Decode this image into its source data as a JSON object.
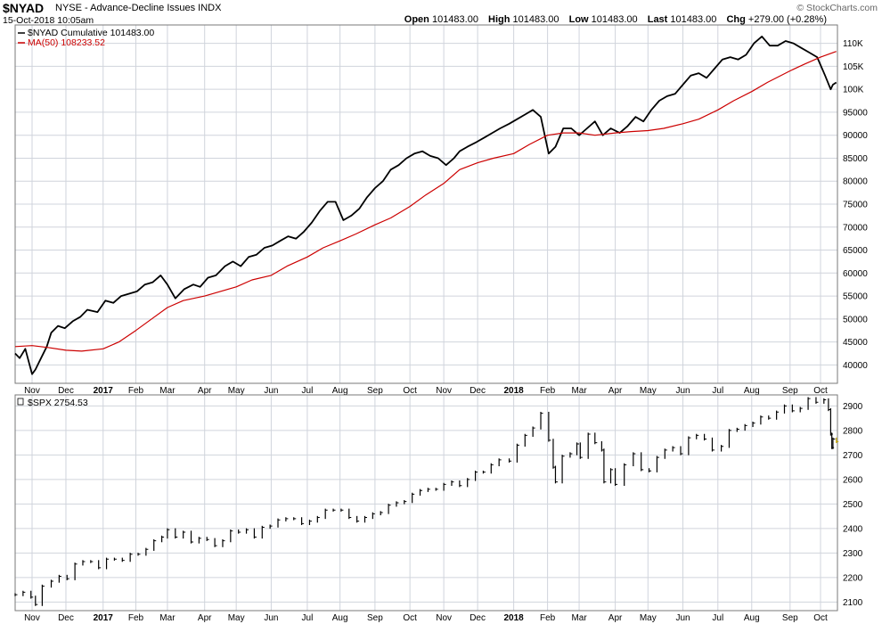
{
  "header": {
    "symbol": "$NYAD",
    "description": "NYSE - Advance-Decline Issues INDX",
    "date": "15-Oct-2018 10:05am",
    "brand": "© StockCharts.com",
    "quote": {
      "open_label": "Open",
      "open": "101483.00",
      "high_label": "High",
      "high": "101483.00",
      "low_label": "Low",
      "low": "101483.00",
      "last_label": "Last",
      "last": "101483.00",
      "chg_label": "Chg",
      "chg": "+279.00 (+0.28%)"
    }
  },
  "colors": {
    "price": "#000000",
    "ma": "#cc0000",
    "grid": "#d0d4dc",
    "frame": "#7a7a7a"
  },
  "chart_data": [
    {
      "type": "line",
      "legend_position": "top-left",
      "grid": true,
      "ylim": [
        36000,
        114000
      ],
      "y_ticks": [
        40000,
        45000,
        50000,
        55000,
        60000,
        65000,
        70000,
        75000,
        80000,
        85000,
        90000,
        95000,
        100000,
        105000,
        110000
      ],
      "y_tick_labels": [
        "40000",
        "45000",
        "50000",
        "55000",
        "60000",
        "65000",
        "70000",
        "75000",
        "80000",
        "85000",
        "90000",
        "95000",
        "100K",
        "105K",
        "110K"
      ],
      "x_start": "2016-10-17",
      "x_end": "2018-10-16",
      "x_tick_labels": [
        {
          "date": "2016-11-01",
          "label": "Nov"
        },
        {
          "date": "2016-12-01",
          "label": "Dec"
        },
        {
          "date": "2017-01-03",
          "label": "2017"
        },
        {
          "date": "2017-02-01",
          "label": "Feb"
        },
        {
          "date": "2017-03-01",
          "label": "Mar"
        },
        {
          "date": "2017-04-03",
          "label": "Apr"
        },
        {
          "date": "2017-05-01",
          "label": "May"
        },
        {
          "date": "2017-06-01",
          "label": "Jun"
        },
        {
          "date": "2017-07-03",
          "label": "Jul"
        },
        {
          "date": "2017-08-01",
          "label": "Aug"
        },
        {
          "date": "2017-09-01",
          "label": "Sep"
        },
        {
          "date": "2017-10-02",
          "label": "Oct"
        },
        {
          "date": "2017-11-01",
          "label": "Nov"
        },
        {
          "date": "2017-12-01",
          "label": "Dec"
        },
        {
          "date": "2018-01-02",
          "label": "2018"
        },
        {
          "date": "2018-02-01",
          "label": "Feb"
        },
        {
          "date": "2018-03-01",
          "label": "Mar"
        },
        {
          "date": "2018-04-02",
          "label": "Apr"
        },
        {
          "date": "2018-05-01",
          "label": "May"
        },
        {
          "date": "2018-06-01",
          "label": "Jun"
        },
        {
          "date": "2018-07-02",
          "label": "Jul"
        },
        {
          "date": "2018-08-01",
          "label": "Aug"
        },
        {
          "date": "2018-09-04",
          "label": "Sep"
        },
        {
          "date": "2018-10-01",
          "label": "Oct"
        }
      ],
      "series": [
        {
          "name": "$NYAD Cumulative 101483.00",
          "color": "#000000",
          "x": [
            "2016-10-17",
            "2016-10-21",
            "2016-10-26",
            "2016-11-01",
            "2016-11-04",
            "2016-11-09",
            "2016-11-14",
            "2016-11-18",
            "2016-11-24",
            "2016-11-30",
            "2016-12-07",
            "2016-12-14",
            "2016-12-20",
            "2016-12-29",
            "2017-01-05",
            "2017-01-12",
            "2017-01-19",
            "2017-01-26",
            "2017-02-02",
            "2017-02-09",
            "2017-02-16",
            "2017-02-23",
            "2017-03-01",
            "2017-03-08",
            "2017-03-16",
            "2017-03-24",
            "2017-03-30",
            "2017-04-06",
            "2017-04-13",
            "2017-04-21",
            "2017-04-28",
            "2017-05-05",
            "2017-05-12",
            "2017-05-19",
            "2017-05-26",
            "2017-06-02",
            "2017-06-09",
            "2017-06-16",
            "2017-06-23",
            "2017-06-30",
            "2017-07-07",
            "2017-07-14",
            "2017-07-21",
            "2017-07-28",
            "2017-08-04",
            "2017-08-11",
            "2017-08-18",
            "2017-08-25",
            "2017-09-01",
            "2017-09-08",
            "2017-09-15",
            "2017-09-22",
            "2017-09-29",
            "2017-10-06",
            "2017-10-13",
            "2017-10-20",
            "2017-10-27",
            "2017-11-03",
            "2017-11-10",
            "2017-11-15",
            "2017-11-22",
            "2017-11-30",
            "2017-12-07",
            "2017-12-14",
            "2017-12-21",
            "2017-12-29",
            "2018-01-05",
            "2018-01-12",
            "2018-01-19",
            "2018-01-26",
            "2018-02-02",
            "2018-02-08",
            "2018-02-15",
            "2018-02-22",
            "2018-03-01",
            "2018-03-08",
            "2018-03-15",
            "2018-03-22",
            "2018-03-29",
            "2018-04-06",
            "2018-04-13",
            "2018-04-20",
            "2018-04-27",
            "2018-05-04",
            "2018-05-11",
            "2018-05-18",
            "2018-05-25",
            "2018-06-01",
            "2018-06-08",
            "2018-06-15",
            "2018-06-22",
            "2018-06-29",
            "2018-07-06",
            "2018-07-13",
            "2018-07-20",
            "2018-07-27",
            "2018-08-03",
            "2018-08-10",
            "2018-08-17",
            "2018-08-24",
            "2018-08-31",
            "2018-09-07",
            "2018-09-14",
            "2018-09-21",
            "2018-09-28",
            "2018-10-05",
            "2018-10-10",
            "2018-10-12",
            "2018-10-15"
          ],
          "values": [
            42500,
            41500,
            43500,
            38000,
            39000,
            41500,
            44000,
            47000,
            48500,
            48000,
            49500,
            50500,
            52000,
            51500,
            54000,
            53500,
            55000,
            55500,
            56000,
            57500,
            58000,
            59500,
            57500,
            54500,
            56500,
            57500,
            57000,
            59000,
            59500,
            61500,
            62500,
            61500,
            63500,
            64000,
            65500,
            66000,
            67000,
            68000,
            67500,
            69000,
            71000,
            73500,
            75500,
            75500,
            71500,
            72500,
            74000,
            76500,
            78500,
            80000,
            82500,
            83500,
            85000,
            86000,
            86500,
            85500,
            85000,
            83500,
            85000,
            86500,
            87500,
            88500,
            89500,
            90500,
            91500,
            92500,
            93500,
            94500,
            95500,
            94000,
            86000,
            87500,
            91500,
            91500,
            90000,
            91500,
            93000,
            90000,
            91500,
            90500,
            92000,
            94000,
            93000,
            95500,
            97500,
            98500,
            99000,
            101000,
            103000,
            103500,
            102500,
            104500,
            106500,
            107000,
            106500,
            107500,
            110000,
            111500,
            109500,
            109500,
            110500,
            110000,
            109000,
            108000,
            107000,
            103000,
            100000,
            101000,
            101483
          ]
        },
        {
          "name": "MA(50) 108233.52",
          "color": "#cc0000",
          "x": [
            "2016-10-17",
            "2016-11-01",
            "2016-11-15",
            "2016-12-01",
            "2016-12-15",
            "2017-01-03",
            "2017-01-17",
            "2017-02-01",
            "2017-02-15",
            "2017-03-01",
            "2017-03-15",
            "2017-04-03",
            "2017-04-17",
            "2017-05-01",
            "2017-05-15",
            "2017-06-01",
            "2017-06-15",
            "2017-07-03",
            "2017-07-17",
            "2017-08-01",
            "2017-08-15",
            "2017-09-01",
            "2017-09-15",
            "2017-10-02",
            "2017-10-16",
            "2017-11-01",
            "2017-11-15",
            "2017-12-01",
            "2017-12-15",
            "2018-01-02",
            "2018-01-16",
            "2018-02-01",
            "2018-02-15",
            "2018-03-01",
            "2018-03-15",
            "2018-04-02",
            "2018-04-16",
            "2018-05-01",
            "2018-05-15",
            "2018-06-01",
            "2018-06-15",
            "2018-07-02",
            "2018-07-16",
            "2018-08-01",
            "2018-08-15",
            "2018-09-04",
            "2018-09-17",
            "2018-10-01",
            "2018-10-15"
          ],
          "values": [
            44000,
            44200,
            43800,
            43200,
            43000,
            43500,
            45000,
            47500,
            50000,
            52500,
            54000,
            55000,
            56000,
            57000,
            58500,
            59500,
            61500,
            63500,
            65500,
            67000,
            68500,
            70500,
            72000,
            74500,
            77000,
            79500,
            82500,
            84000,
            85000,
            86000,
            88000,
            90000,
            90500,
            90500,
            90000,
            90500,
            90800,
            91000,
            91500,
            92500,
            93500,
            95500,
            97500,
            99500,
            101500,
            104000,
            105500,
            107000,
            108233.52
          ]
        }
      ]
    },
    {
      "type": "bar",
      "name": "$SPX 2754.53",
      "legend_position": "top-left",
      "grid": true,
      "ylim": [
        2065,
        2945
      ],
      "y_ticks": [
        2100,
        2200,
        2300,
        2400,
        2500,
        2600,
        2700,
        2800,
        2900
      ],
      "y_tick_labels": [
        "2100",
        "2200",
        "2300",
        "2400",
        "2500",
        "2600",
        "2700",
        "2800",
        "2900"
      ],
      "x": [
        "2016-10-17",
        "2016-10-24",
        "2016-10-31",
        "2016-11-04",
        "2016-11-10",
        "2016-11-18",
        "2016-11-25",
        "2016-12-02",
        "2016-12-09",
        "2016-12-16",
        "2016-12-23",
        "2016-12-30",
        "2017-01-06",
        "2017-01-13",
        "2017-01-20",
        "2017-01-27",
        "2017-02-03",
        "2017-02-10",
        "2017-02-17",
        "2017-02-24",
        "2017-03-01",
        "2017-03-08",
        "2017-03-15",
        "2017-03-22",
        "2017-03-29",
        "2017-04-05",
        "2017-04-12",
        "2017-04-19",
        "2017-04-26",
        "2017-05-03",
        "2017-05-10",
        "2017-05-17",
        "2017-05-24",
        "2017-05-31",
        "2017-06-07",
        "2017-06-14",
        "2017-06-21",
        "2017-06-28",
        "2017-07-05",
        "2017-07-12",
        "2017-07-19",
        "2017-07-26",
        "2017-08-02",
        "2017-08-09",
        "2017-08-16",
        "2017-08-23",
        "2017-08-30",
        "2017-09-06",
        "2017-09-13",
        "2017-09-20",
        "2017-09-27",
        "2017-10-04",
        "2017-10-11",
        "2017-10-18",
        "2017-10-25",
        "2017-11-01",
        "2017-11-08",
        "2017-11-15",
        "2017-11-22",
        "2017-11-29",
        "2017-12-06",
        "2017-12-13",
        "2017-12-20",
        "2017-12-29",
        "2018-01-05",
        "2018-01-12",
        "2018-01-19",
        "2018-01-26",
        "2018-02-02",
        "2018-02-06",
        "2018-02-08",
        "2018-02-14",
        "2018-02-21",
        "2018-02-27",
        "2018-03-02",
        "2018-03-09",
        "2018-03-15",
        "2018-03-21",
        "2018-03-23",
        "2018-03-29",
        "2018-04-02",
        "2018-04-10",
        "2018-04-18",
        "2018-04-25",
        "2018-05-02",
        "2018-05-09",
        "2018-05-16",
        "2018-05-23",
        "2018-05-30",
        "2018-06-06",
        "2018-06-13",
        "2018-06-20",
        "2018-06-27",
        "2018-07-05",
        "2018-07-12",
        "2018-07-19",
        "2018-07-26",
        "2018-08-02",
        "2018-08-09",
        "2018-08-16",
        "2018-08-23",
        "2018-08-30",
        "2018-09-06",
        "2018-09-13",
        "2018-09-20",
        "2018-09-27",
        "2018-10-04",
        "2018-10-08",
        "2018-10-10",
        "2018-10-11",
        "2018-10-12",
        "2018-10-15"
      ],
      "close": [
        2130,
        2140,
        2120,
        2090,
        2165,
        2185,
        2205,
        2195,
        2255,
        2265,
        2265,
        2240,
        2275,
        2275,
        2270,
        2295,
        2295,
        2315,
        2350,
        2365,
        2395,
        2365,
        2385,
        2345,
        2360,
        2355,
        2330,
        2350,
        2390,
        2385,
        2395,
        2365,
        2405,
        2410,
        2435,
        2440,
        2440,
        2420,
        2430,
        2445,
        2475,
        2475,
        2475,
        2445,
        2430,
        2445,
        2460,
        2465,
        2495,
        2505,
        2510,
        2540,
        2555,
        2560,
        2560,
        2580,
        2590,
        2575,
        2600,
        2630,
        2630,
        2660,
        2680,
        2675,
        2740,
        2780,
        2810,
        2870,
        2760,
        2650,
        2590,
        2695,
        2705,
        2745,
        2690,
        2785,
        2750,
        2720,
        2590,
        2640,
        2580,
        2660,
        2705,
        2640,
        2635,
        2690,
        2720,
        2730,
        2705,
        2770,
        2780,
        2765,
        2720,
        2735,
        2800,
        2805,
        2820,
        2830,
        2855,
        2850,
        2875,
        2900,
        2880,
        2890,
        2930,
        2915,
        2925,
        2885,
        2785,
        2730,
        2765,
        2754.53
      ]
    }
  ]
}
